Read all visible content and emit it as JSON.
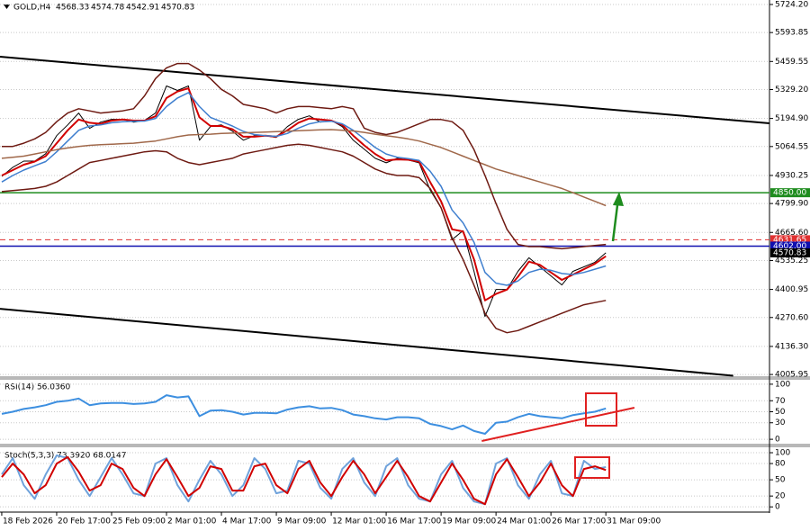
{
  "chart_data": [
    {
      "type": "line",
      "title": "GOLD,H4",
      "ohlc": [
        4568.33,
        4574.78,
        4542.91,
        4570.83
      ],
      "categories": [
        "18 Feb 2026",
        null,
        null,
        null,
        null,
        "20 Feb 17:00",
        null,
        null,
        null,
        null,
        "25 Feb 09:00",
        null,
        null,
        null,
        null,
        "2 Mar 01:00",
        null,
        null,
        null,
        null,
        "4 Mar 17:00",
        null,
        null,
        null,
        null,
        "9 Mar 09:00",
        null,
        null,
        null,
        null,
        "12 Mar 01:00",
        null,
        null,
        null,
        null,
        "16 Mar 17:00",
        null,
        null,
        null,
        null,
        "19 Mar 09:00",
        null,
        null,
        null,
        null,
        "24 Mar 01:00",
        null,
        null,
        null,
        null,
        "26 Mar 17:00",
        null,
        null,
        null,
        null,
        "31 Mar 09:00"
      ],
      "xlim": [
        -0.16,
        69.9
      ],
      "ylim": [
        3998,
        5745
      ],
      "yticks": [
        {
          "value": 4005.95,
          "label": "4005.95"
        },
        {
          "value": 4136.3,
          "label": "4136.30"
        },
        {
          "value": 4270.6,
          "label": "4270.60"
        },
        {
          "value": 4400.95,
          "label": "4400.95"
        },
        {
          "value": 4535.25,
          "label": "4535.25"
        },
        {
          "value": 4665.6,
          "label": "4665.60"
        },
        {
          "value": 4799.9,
          "label": "4799.90"
        },
        {
          "value": 4930.25,
          "label": "4930.25"
        },
        {
          "value": 5064.55,
          "label": "5064.55"
        },
        {
          "value": 5194.9,
          "label": "5194.90"
        },
        {
          "value": 5329.2,
          "label": "5329.20"
        },
        {
          "value": 5459.55,
          "label": "5459.55"
        },
        {
          "value": 5593.85,
          "label": "5593.85"
        },
        {
          "value": 5724.2,
          "label": "5724.20"
        }
      ],
      "grid": true,
      "series": [
        {
          "color": "#000000",
          "width": 1,
          "values": [
            4926,
            4968,
            4997,
            4997,
            5031,
            5115,
            5165,
            5220,
            5149,
            5178,
            5191,
            5191,
            5178,
            5186,
            5220,
            5346,
            5325,
            5346,
            5094,
            5157,
            5165,
            5136,
            5094,
            5115,
            5115,
            5107,
            5157,
            5191,
            5207,
            5178,
            5186,
            5157,
            5094,
            5052,
            5010,
            4989,
            5010,
            5002,
            4989,
            4863,
            4779,
            4632,
            4674,
            4485,
            4275,
            4401,
            4401,
            4485,
            4548,
            4506,
            4464,
            4422,
            4485,
            4506,
            4527,
            4570.83
          ]
        },
        {
          "color": "#d10000",
          "width": 2,
          "values": [
            4930,
            4955,
            4980,
            4995,
            5020,
            5080,
            5140,
            5190,
            5175,
            5170,
            5185,
            5190,
            5185,
            5185,
            5205,
            5290,
            5320,
            5335,
            5200,
            5160,
            5160,
            5145,
            5110,
            5110,
            5115,
            5110,
            5140,
            5175,
            5195,
            5190,
            5185,
            5165,
            5115,
            5070,
            5030,
            5000,
            5005,
            5003,
            4995,
            4900,
            4810,
            4680,
            4670,
            4540,
            4350,
            4380,
            4400,
            4460,
            4530,
            4515,
            4480,
            4445,
            4470,
            4495,
            4520,
            4555
          ]
        },
        {
          "color": "#3f7fcf",
          "width": 1.5,
          "values": [
            4900,
            4930,
            4955,
            4975,
            4995,
            5040,
            5090,
            5140,
            5160,
            5165,
            5175,
            5180,
            5182,
            5183,
            5195,
            5250,
            5290,
            5315,
            5250,
            5200,
            5180,
            5160,
            5135,
            5120,
            5115,
            5112,
            5125,
            5150,
            5170,
            5180,
            5182,
            5170,
            5140,
            5100,
            5060,
            5030,
            5015,
            5008,
            5000,
            4950,
            4880,
            4770,
            4710,
            4620,
            4480,
            4430,
            4420,
            4440,
            4480,
            4495,
            4490,
            4475,
            4470,
            4480,
            4495,
            4510
          ]
        },
        {
          "color": "#a0684a",
          "width": 1.5,
          "values": [
            5010,
            5015,
            5020,
            5030,
            5040,
            5050,
            5058,
            5065,
            5070,
            5073,
            5075,
            5078,
            5080,
            5085,
            5090,
            5100,
            5110,
            5118,
            5120,
            5122,
            5125,
            5127,
            5128,
            5130,
            5132,
            5134,
            5136,
            5138,
            5140,
            5142,
            5143,
            5140,
            5137,
            5130,
            5122,
            5115,
            5108,
            5100,
            5090,
            5075,
            5060,
            5040,
            5020,
            5000,
            4980,
            4960,
            4945,
            4930,
            4915,
            4900,
            4885,
            4870,
            4850,
            4830,
            4810,
            4790
          ]
        },
        {
          "color": "#6e1a12",
          "width": 1.5,
          "values": [
            5065,
            5065,
            5080,
            5100,
            5130,
            5180,
            5220,
            5240,
            5230,
            5220,
            5225,
            5230,
            5240,
            5300,
            5380,
            5430,
            5450,
            5450,
            5420,
            5380,
            5330,
            5300,
            5260,
            5250,
            5240,
            5220,
            5240,
            5250,
            5250,
            5245,
            5240,
            5250,
            5240,
            5150,
            5130,
            5120,
            5130,
            5150,
            5170,
            5190,
            5190,
            5180,
            5140,
            5050,
            4930,
            4800,
            4680,
            4610,
            4600,
            4600,
            4595,
            4590,
            4595,
            4600,
            4605,
            4610
          ]
        },
        {
          "color": "#6e1a12",
          "width": 1.5,
          "values": [
            4855,
            4860,
            4865,
            4870,
            4880,
            4900,
            4930,
            4960,
            4990,
            5000,
            5010,
            5020,
            5030,
            5040,
            5045,
            5040,
            5010,
            4990,
            4980,
            4990,
            5000,
            5010,
            5030,
            5040,
            5050,
            5060,
            5070,
            5075,
            5070,
            5060,
            5050,
            5040,
            5020,
            4990,
            4960,
            4940,
            4930,
            4930,
            4920,
            4870,
            4780,
            4640,
            4540,
            4420,
            4290,
            4220,
            4200,
            4210,
            4230,
            4250,
            4270,
            4290,
            4310,
            4330,
            4340,
            4350
          ]
        }
      ],
      "trendlines": [
        {
          "color": "#000000",
          "x": [
            -0.16,
            69.9
          ],
          "y": [
            5481.7,
            5172.4
          ]
        },
        {
          "color": "#000000",
          "x": [
            -0.16,
            66.6
          ],
          "y": [
            4311,
            4000
          ]
        }
      ],
      "levels": [
        {
          "value": 4850,
          "label": "4850.00",
          "color": "#1e8c1e",
          "dash": false
        },
        {
          "value": 4631.65,
          "label": "4631.65",
          "color": "#e03030",
          "dash": true
        },
        {
          "value": 4602,
          "label": "4602.00",
          "color": "#1010b0",
          "dash": false
        }
      ]
    },
    {
      "type": "line",
      "title": "RSI(14) 56.0360",
      "xlim": [
        -0.16,
        69.9
      ],
      "ylim": [
        -8,
        108
      ],
      "yticks": [
        0,
        30,
        50,
        70,
        100
      ],
      "grid": true,
      "series": [
        {
          "color": "#3d8fe0",
          "width": 2,
          "values": [
            46,
            50,
            55,
            58,
            62,
            68,
            70,
            74,
            62,
            65,
            66,
            66,
            64,
            65,
            68,
            80,
            76,
            78,
            42,
            52,
            53,
            50,
            45,
            48,
            48,
            47,
            54,
            58,
            60,
            56,
            57,
            53,
            45,
            42,
            38,
            36,
            40,
            40,
            38,
            28,
            24,
            18,
            25,
            15,
            10,
            30,
            32,
            40,
            46,
            42,
            40,
            38,
            44,
            47,
            50,
            56.036
          ]
        }
      ],
      "trendlines": [
        {
          "color": "#e02020",
          "x": [
            43.7,
            57.6
          ],
          "y": [
            -3.1,
            57.4
          ]
        }
      ]
    },
    {
      "type": "line",
      "title": "Stoch(5,3,3) 73.3920 68.0147",
      "xlim": [
        -0.16,
        69.9
      ],
      "ylim": [
        -8,
        110
      ],
      "yticks": [
        0,
        20,
        50,
        80,
        100
      ],
      "grid": true,
      "series": [
        {
          "color": "#6fa2db",
          "width": 2,
          "values": [
            60,
            90,
            40,
            15,
            60,
            95,
            90,
            50,
            20,
            55,
            90,
            60,
            25,
            20,
            80,
            90,
            40,
            10,
            50,
            85,
            60,
            20,
            40,
            90,
            70,
            25,
            30,
            85,
            80,
            35,
            15,
            70,
            90,
            45,
            20,
            75,
            90,
            40,
            15,
            10,
            60,
            85,
            35,
            10,
            5,
            80,
            90,
            40,
            15,
            60,
            85,
            25,
            20,
            85,
            70,
            73.392
          ]
        },
        {
          "color": "#d00000",
          "width": 2,
          "values": [
            55,
            80,
            60,
            25,
            40,
            80,
            92,
            65,
            30,
            40,
            80,
            70,
            35,
            20,
            60,
            88,
            55,
            20,
            35,
            75,
            70,
            30,
            30,
            75,
            80,
            40,
            25,
            70,
            85,
            45,
            20,
            55,
            85,
            60,
            25,
            55,
            85,
            55,
            20,
            10,
            45,
            80,
            50,
            15,
            5,
            60,
            88,
            55,
            20,
            45,
            80,
            40,
            20,
            70,
            75,
            68.0147
          ]
        }
      ]
    }
  ]
}
